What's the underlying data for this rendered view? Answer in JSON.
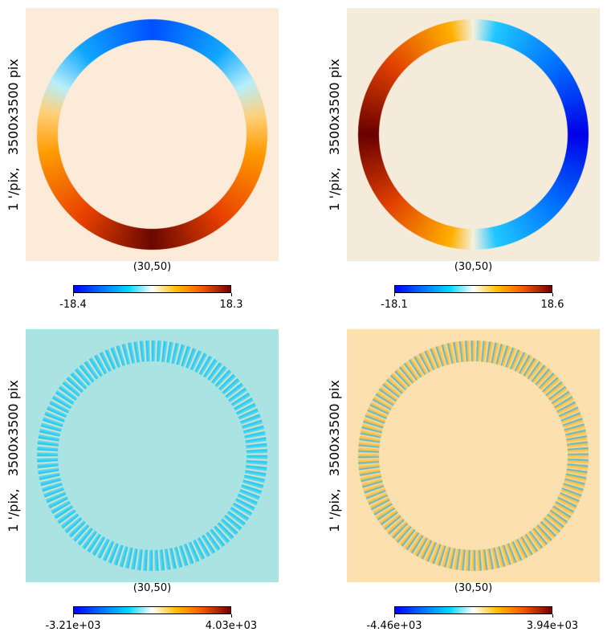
{
  "chart_data": [
    {
      "type": "map",
      "xlabel": "(30,50)",
      "ylabel": "1 '/pix,   3500x3500 pix",
      "cticks": [
        -18.4,
        18.3
      ]
    },
    {
      "type": "map",
      "xlabel": "(30,50)",
      "ylabel": "1 '/pix,   3500x3500 pix",
      "cticks": [
        -18.1,
        18.6
      ]
    },
    {
      "type": "map",
      "xlabel": "(30,50)",
      "ylabel": "1 '/pix,   3500x3500 pix",
      "cticks": [
        {
          "value": -3210,
          "label": "-3.21e+03"
        },
        {
          "value": 4030,
          "label": "4.03e+03"
        }
      ]
    },
    {
      "type": "map",
      "xlabel": "(30,50)",
      "ylabel": "1 '/pix,   3500x3500 pix",
      "cticks": [
        {
          "value": -4460,
          "label": "-4.46e+03"
        },
        {
          "value": 3940,
          "label": "3.94e+03"
        }
      ]
    }
  ]
}
